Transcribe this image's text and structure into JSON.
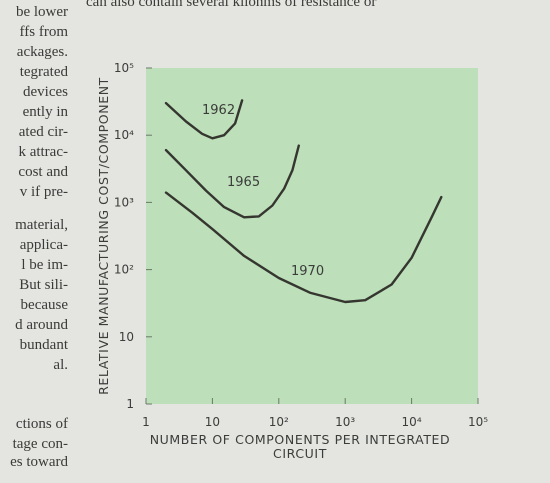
{
  "page_text": {
    "top_line": "can also contain several kilohms of resistance or",
    "left_column": [
      "be lower",
      "ffs from",
      "ackages.",
      "tegrated",
      "devices",
      "ently in",
      "ated cir-",
      "k attrac-",
      "cost and",
      "v if pre-",
      "material,",
      "applica-",
      "l be im-",
      "But sili-",
      "because",
      "d around",
      "bundant",
      "al.",
      "ctions of",
      "tage con-",
      "es toward"
    ]
  },
  "chart_data": {
    "type": "line",
    "x_label": "NUMBER OF COMPONENTS PER INTEGRATED CIRCUIT",
    "y_label": "RELATIVE MANUFACTURING COST/COMPONENT",
    "xscale": "log",
    "yscale": "log",
    "xlim": [
      1,
      100000
    ],
    "ylim": [
      1,
      100000
    ],
    "xticks": [
      1,
      10,
      {
        "value": 100,
        "label": "10²"
      },
      {
        "value": 1000,
        "label": "10³"
      },
      {
        "value": 10000,
        "label": "10⁴"
      },
      {
        "value": 100000,
        "label": "10⁵"
      }
    ],
    "yticks": [
      1,
      10,
      {
        "value": 100,
        "label": "10²"
      },
      {
        "value": 1000,
        "label": "10³"
      },
      {
        "value": 10000,
        "label": "10⁴"
      },
      {
        "value": 100000,
        "label": "10⁵"
      }
    ],
    "grid": false,
    "background": "#bddfba",
    "series": [
      {
        "name": "1962",
        "color": "#35362f",
        "x": [
          2,
          4,
          7,
          10,
          15,
          22,
          28
        ],
        "values": [
          30000,
          16000,
          10500,
          9000,
          10000,
          15000,
          33000
        ]
      },
      {
        "name": "1965",
        "color": "#35362f",
        "x": [
          2,
          4,
          8,
          15,
          30,
          50,
          80,
          120,
          160,
          200
        ],
        "values": [
          6000,
          3000,
          1500,
          850,
          600,
          620,
          900,
          1600,
          3000,
          7000
        ]
      },
      {
        "name": "1970",
        "color": "#35362f",
        "x": [
          2,
          5,
          10,
          30,
          100,
          300,
          1000,
          2000,
          5000,
          10000,
          20000,
          28000
        ],
        "values": [
          1400,
          700,
          400,
          160,
          75,
          45,
          33,
          35,
          60,
          150,
          600,
          1200
        ]
      }
    ]
  }
}
